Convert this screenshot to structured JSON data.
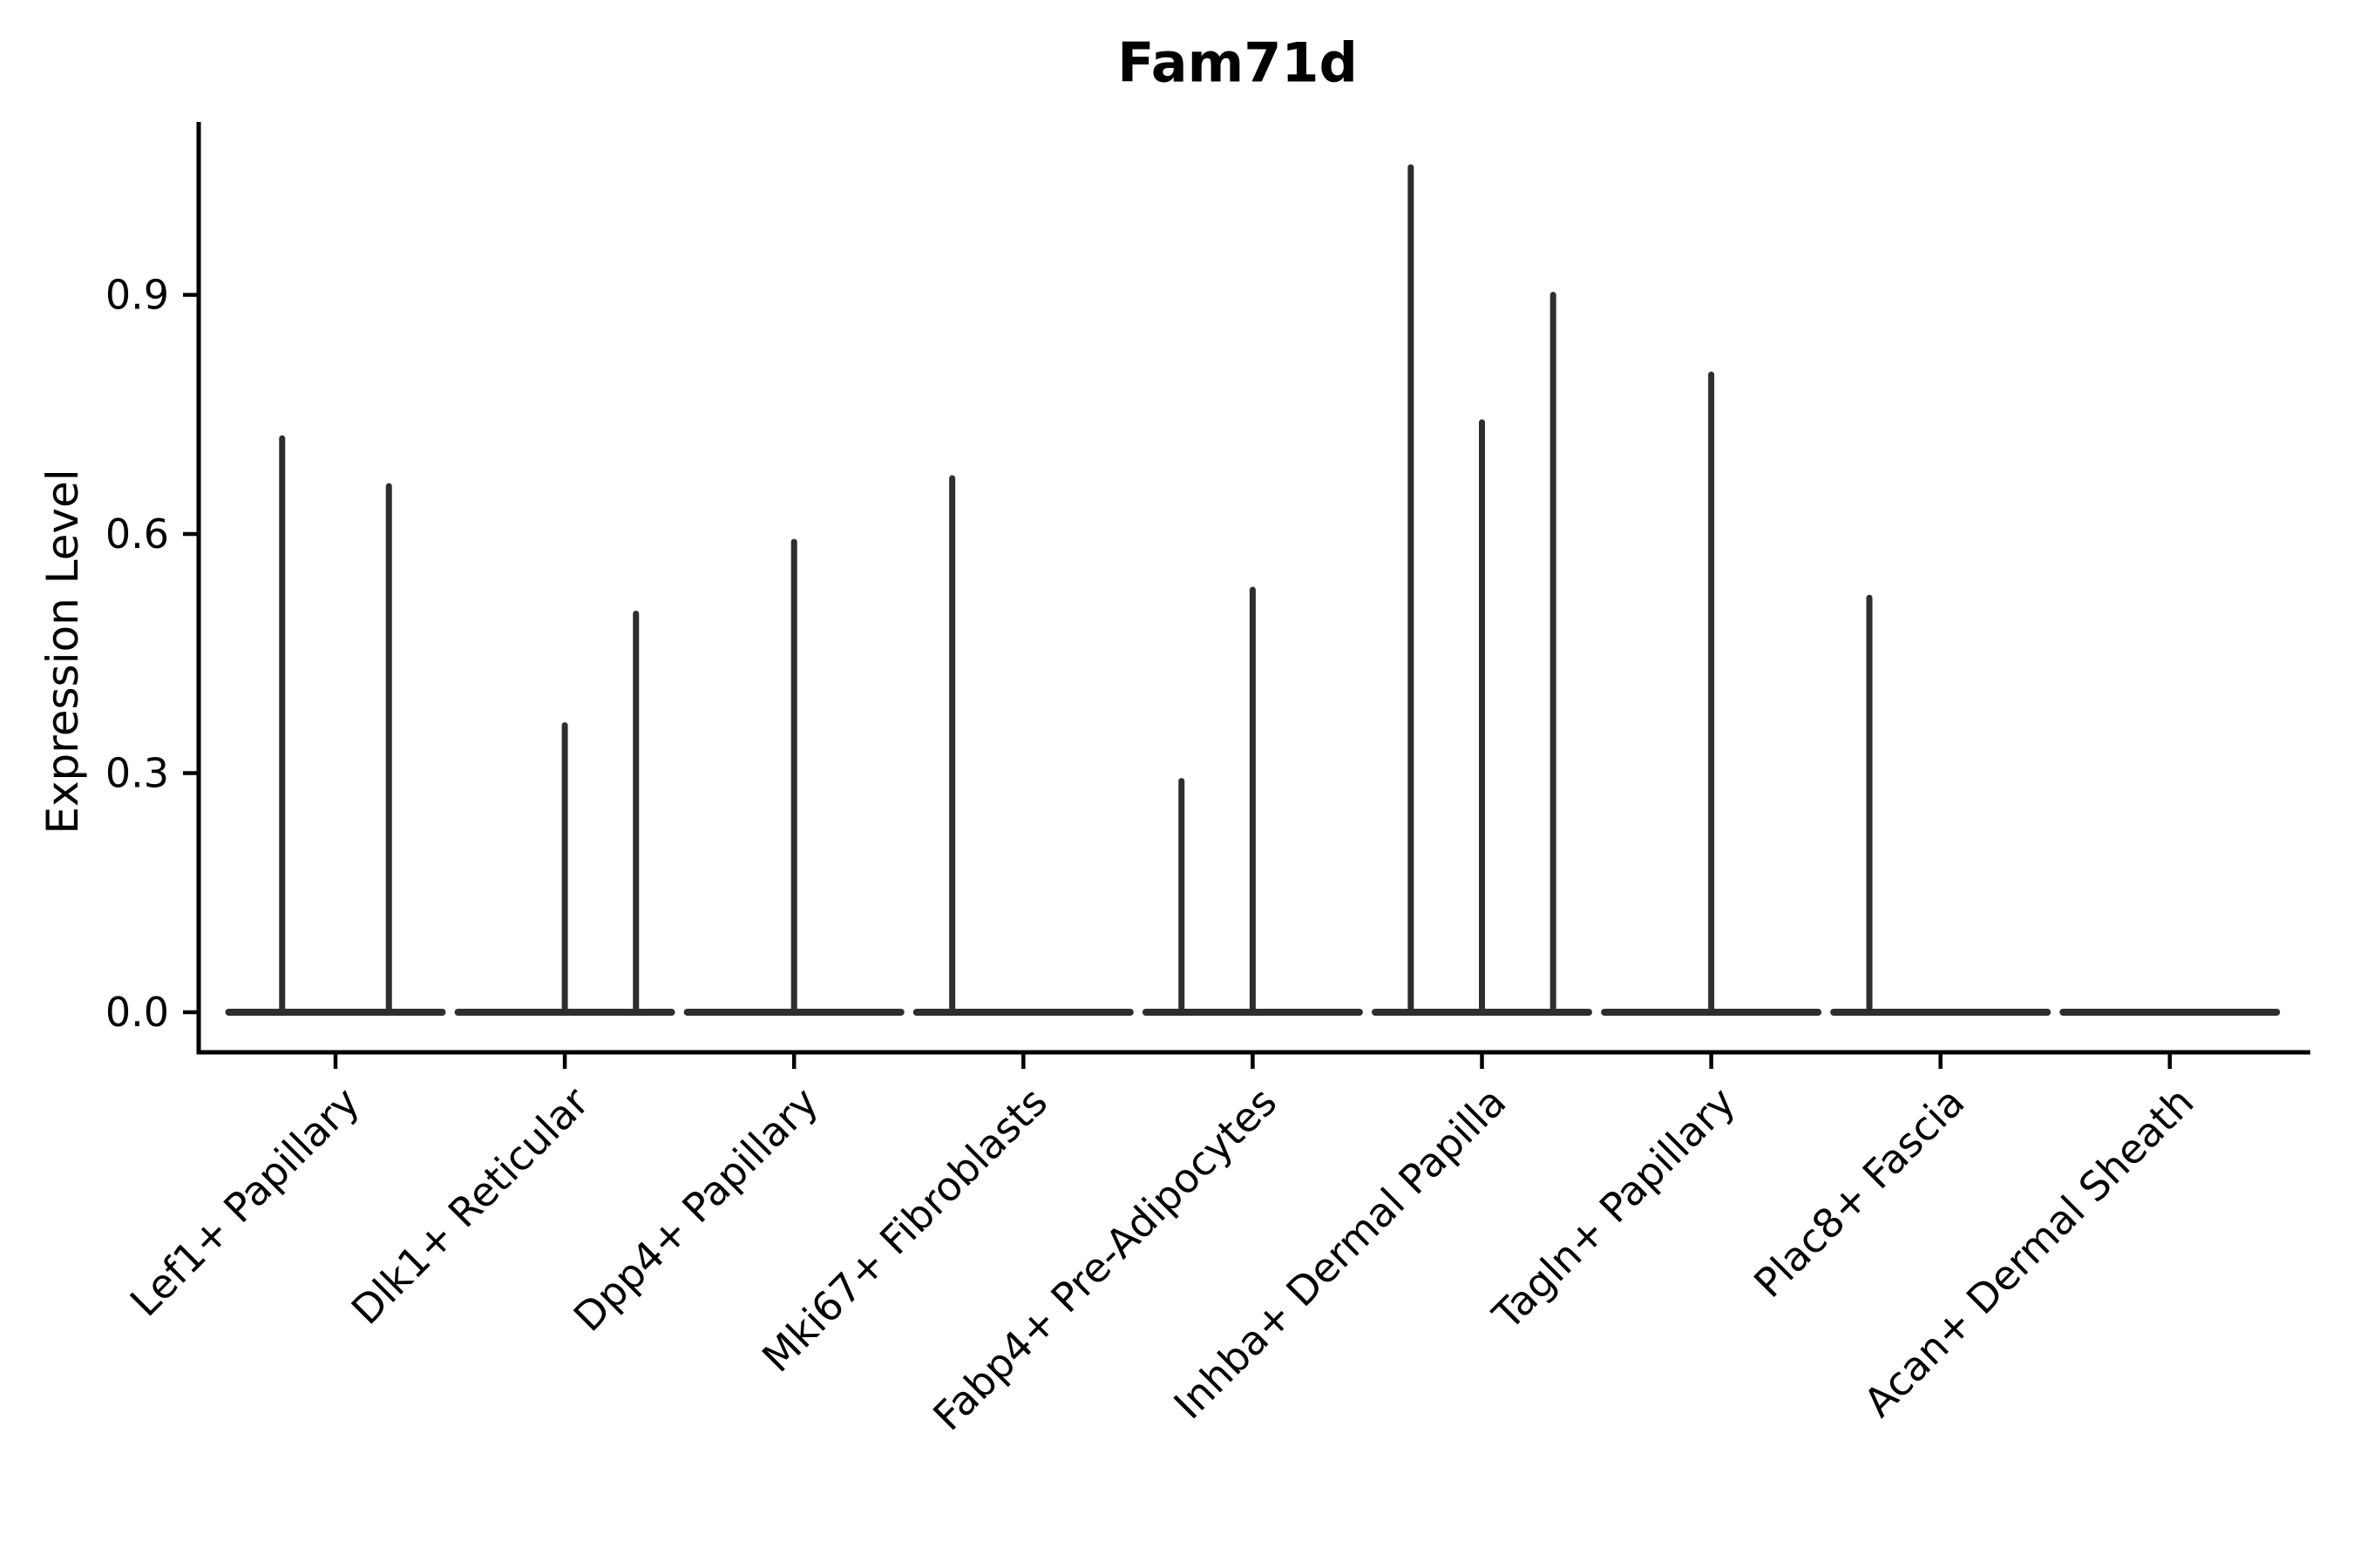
{
  "title": "Fam71d",
  "colors": {
    "violin": "#2e2e2e",
    "axis": "#000000",
    "background": "#ffffff"
  },
  "chart_data": {
    "type": "violin",
    "title": "Fam71d",
    "xlabel": "",
    "ylabel": "Expression Level",
    "ylim": [
      -0.05,
      1.12
    ],
    "yticks": [
      0.0,
      0.3,
      0.6,
      0.9
    ],
    "grid": false,
    "legend": "none",
    "categories": [
      "Lef1+ Papillary",
      "Dlk1+ Reticular",
      "Dpp4+ Papillary",
      "Mki67+ Fibroblasts",
      "Fabp4+ Pre-Adipocytes",
      "Inhba+ Dermal Papilla",
      "Tagln+ Papillary",
      "Plac8+ Fascia",
      "Acan+ Dermal Sheath"
    ],
    "violins": [
      {
        "category": "Lef1+ Papillary",
        "group_maxima": [
          0.72,
          0.66
        ]
      },
      {
        "category": "Dlk1+ Reticular",
        "group_maxima": [
          0.0,
          0.36,
          0.5
        ]
      },
      {
        "category": "Dpp4+ Papillary",
        "group_maxima": [
          0.0,
          0.59,
          0.0
        ]
      },
      {
        "category": "Mki67+ Fibroblasts",
        "group_maxima": [
          0.67,
          0.0,
          0.0
        ]
      },
      {
        "category": "Fabp4+ Pre-Adipocytes",
        "group_maxima": [
          0.29,
          0.53,
          0.0
        ]
      },
      {
        "category": "Inhba+ Dermal Papilla",
        "group_maxima": [
          1.06,
          0.74,
          0.9
        ]
      },
      {
        "category": "Tagln+ Papillary",
        "group_maxima": [
          0.0,
          0.8,
          0.0
        ]
      },
      {
        "category": "Plac8+ Fascia",
        "group_maxima": [
          0.52,
          0.0,
          0.0
        ]
      },
      {
        "category": "Acan+ Dermal Sheath",
        "group_maxima": [
          0.0,
          0.0,
          0.0
        ]
      }
    ],
    "note": "Each violin collapses to a flat base at 0 with a thin spike rising to the group maximum expression."
  }
}
